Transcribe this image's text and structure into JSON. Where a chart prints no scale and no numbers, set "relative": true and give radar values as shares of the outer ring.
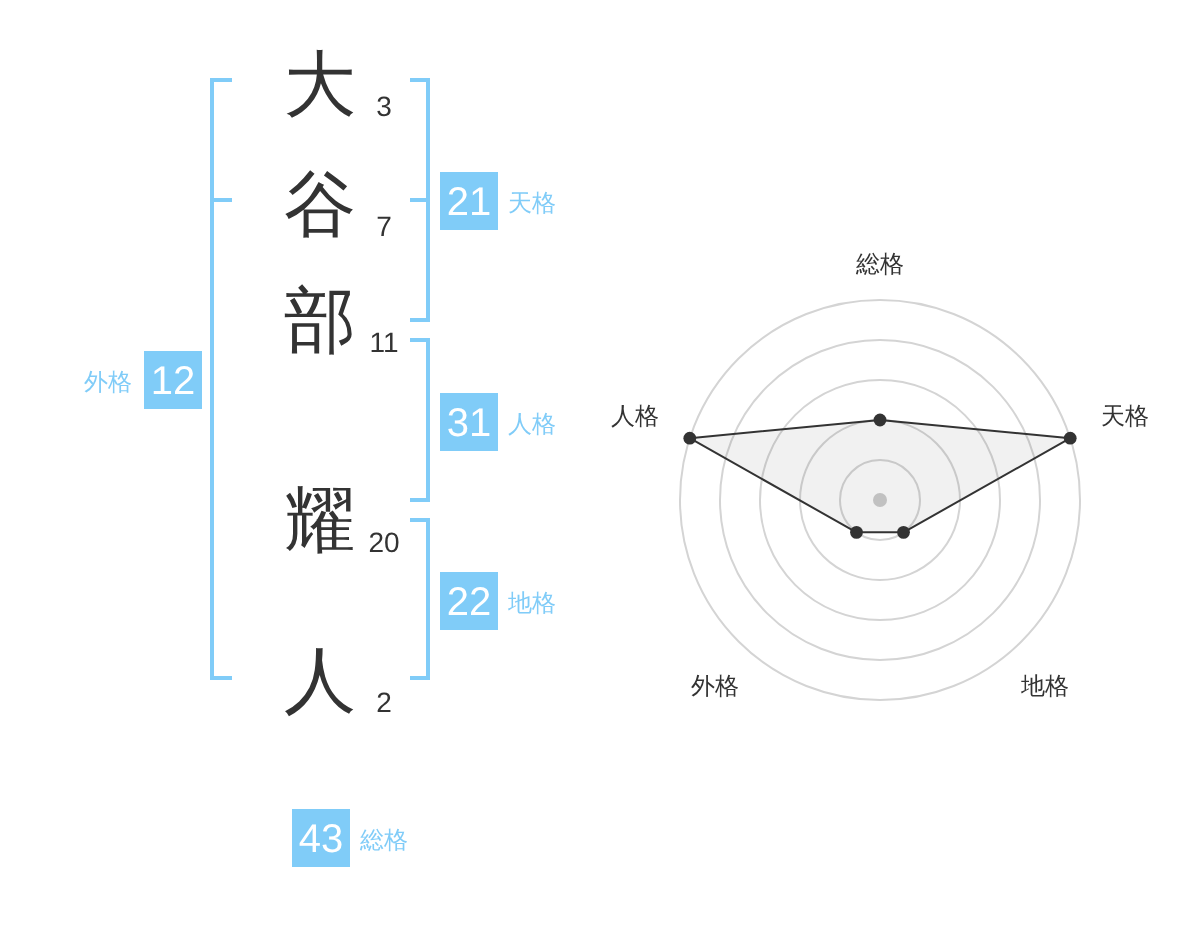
{
  "chart_data": [
    {
      "type": "other",
      "categories": [
        "大",
        "谷",
        "部",
        "耀",
        "人"
      ],
      "values": [
        3,
        7,
        11,
        20,
        2
      ],
      "data_labels": true,
      "annotations": [
        "21",
        "天格",
        "12",
        "外格",
        "31",
        "人格",
        "22",
        "地格",
        "43",
        "総格"
      ],
      "color": "#80ccf8"
    },
    {
      "type": "radar",
      "categories": [
        "総格",
        "天格",
        "地格",
        "外格",
        "人格"
      ],
      "series": [
        {
          "color": "#333333",
          "values": [
            0.4,
            1,
            0.2,
            0.2,
            1
          ]
        }
      ],
      "relative": true,
      "marker": "circle",
      "grid": true
    }
  ]
}
